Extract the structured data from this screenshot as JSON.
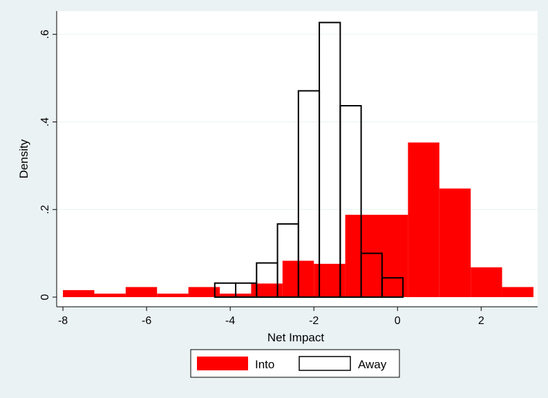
{
  "chart_data": {
    "type": "bar",
    "title": "",
    "xlabel": "Net Impact",
    "ylabel": "Density",
    "xlim": [
      -8.15,
      3.35
    ],
    "ylim": [
      0,
      0.65
    ],
    "xticks": [
      {
        "value": -8,
        "label": "-8"
      },
      {
        "value": -6,
        "label": "-6"
      },
      {
        "value": -4,
        "label": "-4"
      },
      {
        "value": -2,
        "label": "-2"
      },
      {
        "value": 0,
        "label": "0"
      },
      {
        "value": 2,
        "label": "2"
      }
    ],
    "yticks": [
      {
        "value": 0,
        "label": "0"
      },
      {
        "value": 0.2,
        "label": ".2"
      },
      {
        "value": 0.4,
        "label": ".4"
      },
      {
        "value": 0.6,
        "label": ".6"
      }
    ],
    "grid": true,
    "legend_position": "bottom",
    "series": [
      {
        "name": "Into",
        "style": "filled",
        "color": "#ff0000",
        "bins": [
          {
            "x0": -8.0,
            "x1": -7.25,
            "density": 0.016
          },
          {
            "x0": -7.25,
            "x1": -6.5,
            "density": 0.008
          },
          {
            "x0": -6.5,
            "x1": -5.75,
            "density": 0.023
          },
          {
            "x0": -5.75,
            "x1": -5.0,
            "density": 0.008
          },
          {
            "x0": -5.0,
            "x1": -4.25,
            "density": 0.023
          },
          {
            "x0": -4.25,
            "x1": -3.5,
            "density": 0.008
          },
          {
            "x0": -3.5,
            "x1": -2.75,
            "density": 0.031
          },
          {
            "x0": -2.75,
            "x1": -2.0,
            "density": 0.083
          },
          {
            "x0": -2.0,
            "x1": -1.25,
            "density": 0.076
          },
          {
            "x0": -1.25,
            "x1": -0.5,
            "density": 0.188
          },
          {
            "x0": -0.5,
            "x1": 0.25,
            "density": 0.188
          },
          {
            "x0": 0.25,
            "x1": 1.0,
            "density": 0.353
          },
          {
            "x0": 1.0,
            "x1": 1.75,
            "density": 0.248
          },
          {
            "x0": 1.75,
            "x1": 2.5,
            "density": 0.068
          },
          {
            "x0": 2.5,
            "x1": 3.25,
            "density": 0.023
          }
        ]
      },
      {
        "name": "Away",
        "style": "outline",
        "color": "#000000",
        "bins": [
          {
            "x0": -4.37,
            "x1": -3.87,
            "density": 0.032
          },
          {
            "x0": -3.87,
            "x1": -3.37,
            "density": 0.032
          },
          {
            "x0": -3.37,
            "x1": -2.87,
            "density": 0.078
          },
          {
            "x0": -2.87,
            "x1": -2.37,
            "density": 0.167
          },
          {
            "x0": -2.37,
            "x1": -1.87,
            "density": 0.471
          },
          {
            "x0": -1.87,
            "x1": -1.37,
            "density": 0.627
          },
          {
            "x0": -1.37,
            "x1": -0.87,
            "density": 0.437
          },
          {
            "x0": -0.87,
            "x1": -0.37,
            "density": 0.1
          },
          {
            "x0": -0.37,
            "x1": 0.13,
            "density": 0.044
          }
        ]
      }
    ]
  }
}
